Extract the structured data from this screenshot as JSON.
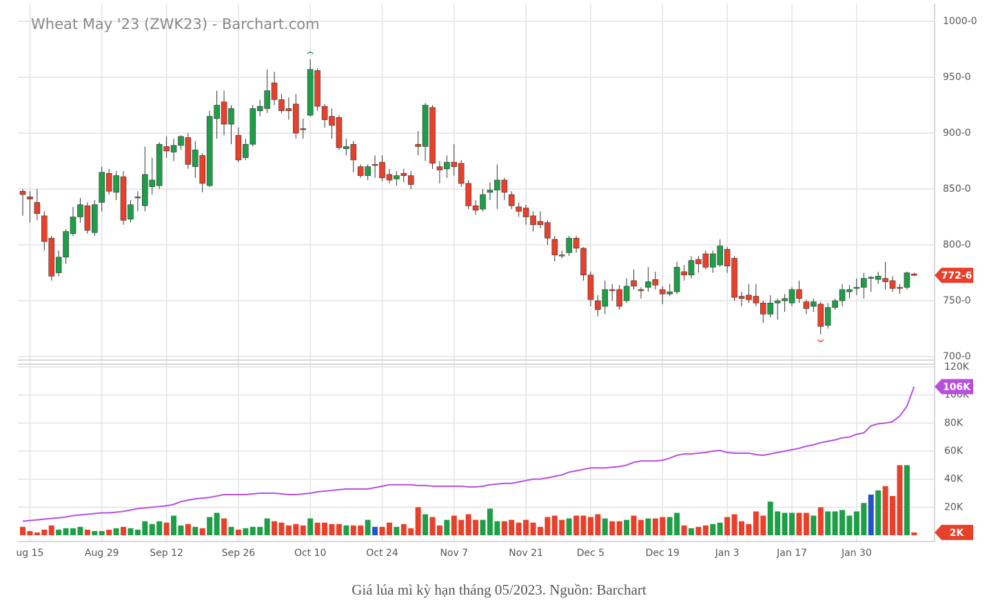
{
  "chart_data": [
    {
      "type": "candlestick",
      "title": "Wheat May '23 (ZWK23) - Barchart.com",
      "categories": [
        null,
        "ug 15",
        null,
        null,
        null,
        null,
        null,
        null,
        null,
        null,
        null,
        "Aug 29",
        null,
        null,
        null,
        null,
        null,
        null,
        null,
        null,
        "Sep 12",
        null,
        null,
        null,
        null,
        null,
        null,
        null,
        null,
        null,
        "Sep 26",
        null,
        null,
        null,
        null,
        null,
        null,
        null,
        null,
        null,
        "Oct 10",
        null,
        null,
        null,
        null,
        null,
        null,
        null,
        null,
        null,
        "Oct 24",
        null,
        null,
        null,
        null,
        null,
        null,
        null,
        null,
        null,
        "Nov 7",
        null,
        null,
        null,
        null,
        null,
        null,
        null,
        null,
        null,
        "Nov 21",
        null,
        null,
        null,
        null,
        null,
        null,
        null,
        null,
        "Dec 5",
        null,
        null,
        null,
        null,
        null,
        null,
        null,
        null,
        null,
        "Dec 19",
        null,
        null,
        null,
        null,
        null,
        null,
        null,
        null,
        "Jan 3",
        null,
        null,
        null,
        null,
        null,
        null,
        null,
        null,
        "Jan 17",
        null,
        null,
        null,
        null,
        null,
        null,
        null,
        null,
        "Jan 30",
        null,
        null,
        null,
        null,
        null,
        null,
        null,
        null
      ],
      "open": [
        848,
        843,
        838,
        826,
        806,
        775,
        789,
        810,
        825,
        835,
        811,
        838,
        864,
        847,
        861,
        823,
        842,
        835,
        852,
        853,
        888,
        883,
        889,
        896,
        870,
        880,
        853,
        913,
        928,
        908,
        898,
        878,
        890,
        920,
        922,
        945,
        930,
        922,
        926,
        904,
        916,
        956,
        924,
        915,
        914,
        886,
        890,
        870,
        862,
        872,
        874,
        863,
        859,
        864,
        862,
        890,
        888,
        923,
        870,
        868,
        874,
        873,
        855,
        835,
        832,
        847,
        849,
        858,
        845,
        834,
        833,
        826,
        821,
        820,
        805,
        791,
        793,
        806,
        797,
        773,
        750,
        745,
        760,
        760,
        750,
        768,
        760,
        762,
        769,
        760,
        756,
        758,
        776,
        773,
        787,
        792,
        780,
        782,
        796,
        788,
        754,
        755,
        754,
        748,
        738,
        748,
        750,
        748,
        760,
        749,
        745,
        747,
        728,
        744,
        750,
        758,
        761,
        762,
        770,
        769,
        770,
        768,
        762,
        762,
        774
      ],
      "high": [
        850,
        848,
        850,
        830,
        808,
        795,
        814,
        834,
        842,
        838,
        840,
        870,
        868,
        866,
        866,
        840,
        848,
        888,
        878,
        892,
        897,
        895,
        898,
        900,
        893,
        882,
        920,
        938,
        938,
        925,
        905,
        895,
        925,
        930,
        957,
        955,
        935,
        932,
        935,
        913,
        966,
        958,
        926,
        922,
        916,
        895,
        893,
        872,
        872,
        880,
        880,
        868,
        866,
        868,
        866,
        902,
        927,
        925,
        875,
        880,
        890,
        876,
        858,
        840,
        850,
        856,
        872,
        860,
        848,
        838,
        836,
        830,
        830,
        822,
        808,
        795,
        808,
        808,
        798,
        776,
        755,
        768,
        765,
        764,
        770,
        778,
        762,
        780,
        776,
        763,
        765,
        785,
        782,
        790,
        790,
        795,
        795,
        805,
        798,
        790,
        758,
        765,
        765,
        750,
        755,
        752,
        756,
        762,
        768,
        751,
        752,
        749,
        748,
        752,
        765,
        764,
        770,
        775,
        772,
        776,
        785,
        772,
        765,
        776,
        775
      ],
      "low": [
        826,
        820,
        822,
        795,
        768,
        772,
        783,
        808,
        820,
        810,
        808,
        830,
        845,
        840,
        818,
        820,
        830,
        830,
        845,
        850,
        878,
        875,
        885,
        868,
        860,
        847,
        852,
        895,
        898,
        890,
        874,
        876,
        888,
        915,
        918,
        925,
        918,
        912,
        895,
        895,
        915,
        920,
        905,
        895,
        885,
        880,
        865,
        860,
        858,
        860,
        857,
        855,
        853,
        856,
        850,
        880,
        875,
        868,
        855,
        860,
        862,
        852,
        832,
        827,
        830,
        840,
        832,
        840,
        832,
        825,
        818,
        812,
        815,
        800,
        785,
        788,
        790,
        793,
        768,
        745,
        736,
        738,
        750,
        742,
        748,
        760,
        752,
        758,
        760,
        747,
        754,
        756,
        768,
        770,
        775,
        778,
        775,
        780,
        775,
        750,
        745,
        748,
        745,
        730,
        735,
        733,
        740,
        745,
        748,
        738,
        740,
        720,
        725,
        742,
        745,
        752,
        755,
        752,
        758,
        765,
        760,
        758,
        756,
        760,
        772
      ],
      "close": [
        845,
        841,
        828,
        803,
        772,
        789,
        812,
        825,
        836,
        813,
        836,
        865,
        848,
        862,
        822,
        836,
        843,
        863,
        858,
        890,
        884,
        889,
        897,
        872,
        885,
        855,
        915,
        925,
        908,
        922,
        876,
        890,
        922,
        924,
        938,
        930,
        920,
        920,
        900,
        903,
        957,
        924,
        912,
        907,
        887,
        888,
        876,
        862,
        870,
        871,
        860,
        858,
        862,
        862,
        854,
        888,
        925,
        873,
        867,
        874,
        870,
        855,
        835,
        831,
        845,
        849,
        858,
        847,
        835,
        830,
        825,
        818,
        818,
        806,
        791,
        790,
        806,
        797,
        773,
        751,
        742,
        760,
        759,
        745,
        763,
        763,
        759,
        767,
        764,
        756,
        758,
        780,
        773,
        786,
        783,
        780,
        792,
        799,
        781,
        753,
        752,
        751,
        748,
        738,
        748,
        750,
        752,
        760,
        752,
        743,
        749,
        727,
        744,
        750,
        760,
        760,
        762,
        770,
        771,
        772,
        767,
        761,
        761,
        775,
        772.75
      ],
      "up_color": "#1e9e47",
      "down_color": "#e8402a",
      "ylim": [
        700,
        1000
      ],
      "yticks": [
        {
          "value": 700,
          "label": "700-0"
        },
        {
          "value": 750,
          "label": "750-0"
        },
        {
          "value": 800,
          "label": "800-0"
        },
        {
          "value": 850,
          "label": "850-0"
        },
        {
          "value": 900,
          "label": "900-0"
        },
        {
          "value": 950,
          "label": "950-0"
        },
        {
          "value": 1000,
          "label": "1000-0"
        }
      ],
      "marker": {
        "value": 772.75,
        "label": "772-6",
        "color": "#e8402a"
      },
      "grid": true
    },
    {
      "type": "volume",
      "volume": {
        "values": [
          6,
          3,
          2,
          4,
          7,
          4,
          5,
          5,
          6,
          4,
          3,
          3,
          4,
          5,
          6,
          5,
          4,
          10,
          8,
          10,
          9,
          14,
          7,
          8,
          6,
          5,
          13,
          16,
          12,
          6,
          4,
          5,
          6,
          6,
          12,
          10,
          9,
          7,
          8,
          7,
          12,
          9,
          9,
          8,
          8,
          7,
          7,
          7,
          11,
          6,
          6,
          9,
          6,
          8,
          5,
          20,
          15,
          13,
          7,
          11,
          14,
          11,
          15,
          11,
          11,
          19,
          10,
          10,
          11,
          9,
          11,
          9,
          6,
          13,
          14,
          11,
          12,
          14,
          14,
          13,
          15,
          12,
          10,
          10,
          11,
          14,
          11,
          12,
          12,
          13,
          13,
          16,
          7,
          5,
          6,
          7,
          8,
          9,
          13,
          15,
          10,
          8,
          17,
          14,
          24,
          17,
          16,
          16,
          16,
          16,
          14,
          20,
          17,
          17,
          18,
          14,
          17,
          23,
          29,
          32,
          35,
          28,
          50,
          50,
          2
        ],
        "highlight": [
          49,
          118
        ],
        "highlight_color": "#2653c7"
      },
      "line": {
        "color": "#b84fdc",
        "values": [
          10,
          10.5,
          11,
          11.5,
          12,
          12.5,
          13,
          14,
          14.5,
          15,
          15.5,
          16,
          16,
          16.5,
          17,
          18,
          19,
          19.5,
          20,
          20.5,
          21,
          22,
          24,
          25,
          26,
          26.5,
          27,
          28,
          29,
          29,
          29,
          29,
          29.5,
          30,
          30,
          30,
          29.5,
          29,
          29,
          29.5,
          30,
          31,
          31.5,
          32,
          32.5,
          33,
          33,
          33,
          33,
          34,
          35,
          36,
          36,
          36,
          36,
          35.5,
          35.5,
          35,
          35,
          35,
          35,
          35,
          34.5,
          34.5,
          35,
          36,
          36.5,
          37,
          37,
          38,
          39,
          40,
          40,
          41,
          42,
          43,
          45,
          46,
          47,
          48,
          48,
          48,
          48.5,
          49,
          50,
          52,
          53,
          53,
          53,
          53.5,
          55,
          57,
          58,
          58,
          58.5,
          59,
          60,
          60.5,
          59,
          58.5,
          58.5,
          58.5,
          57.5,
          57,
          58,
          59,
          60,
          61,
          62,
          63.5,
          64.5,
          66,
          67,
          68,
          69.5,
          70,
          72,
          73,
          78,
          79.5,
          80,
          81,
          85,
          92,
          106,
          null
        ]
      },
      "ylim": [
        0,
        120
      ],
      "yticks": [
        {
          "value": 20,
          "label": "20K"
        },
        {
          "value": 40,
          "label": "40K"
        },
        {
          "value": 60,
          "label": "60K"
        },
        {
          "value": 80,
          "label": "80K"
        },
        {
          "value": 100,
          "label": "100K"
        },
        {
          "value": 120,
          "label": "120K"
        }
      ],
      "line_marker": {
        "value": 106,
        "label": "106K"
      },
      "volume_marker": {
        "value": 2,
        "label": "2K",
        "color": "#e8402a"
      }
    }
  ],
  "caption": "Giá lúa mì kỳ hạn tháng 05/2023. Nguồn: Barchart"
}
